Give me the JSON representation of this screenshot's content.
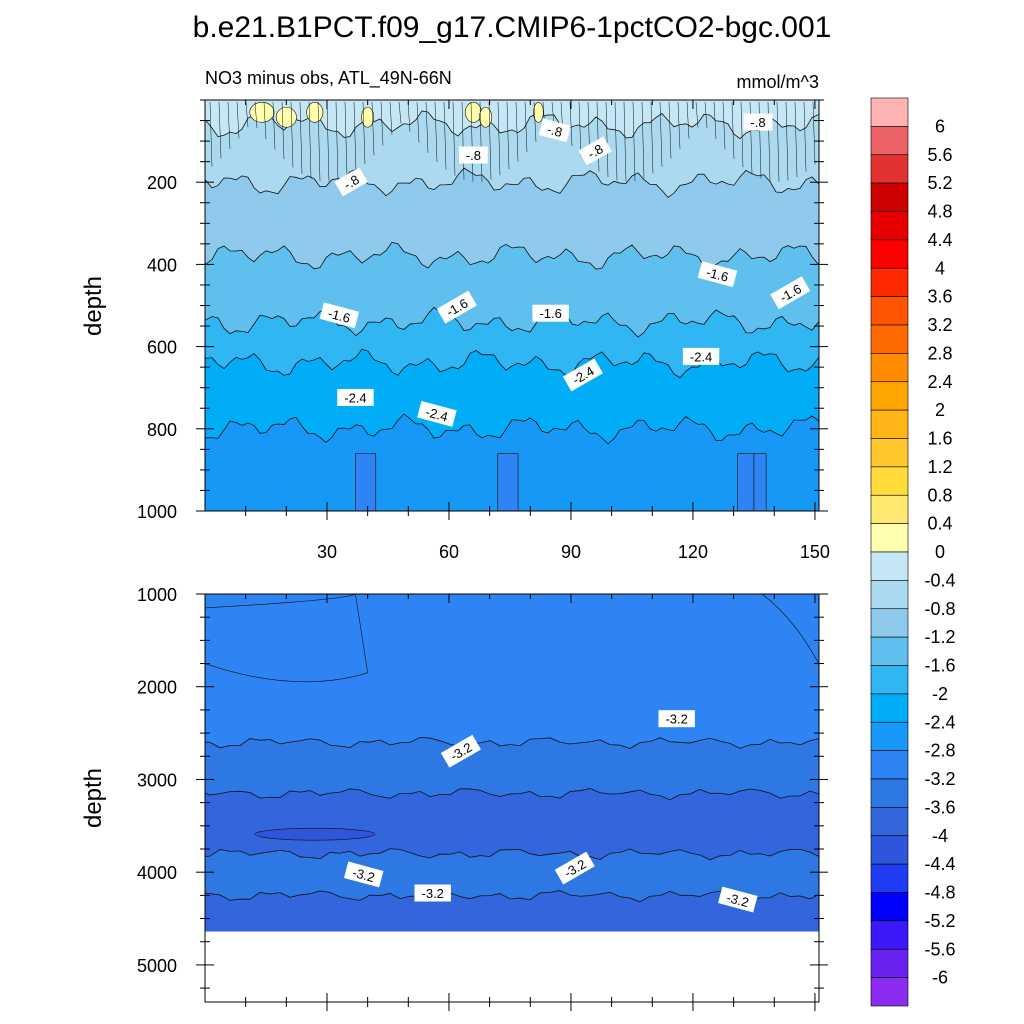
{
  "figure_title": "b.e21.B1PCT.f09_g17.CMIP6-1pctCO2-bgc.001",
  "chart_data": [
    {
      "type": "heatmap",
      "panel": "upper",
      "title": "NO3 minus obs, ATL_49N-66N",
      "units": "mmol/m^3",
      "xlabel": "",
      "ylabel": "depth",
      "xlim": [
        0,
        151
      ],
      "ylim": [
        1000,
        0
      ],
      "xticks": [
        "30",
        "60",
        "90",
        "120",
        "150"
      ],
      "yticks": [
        "200",
        "400",
        "600",
        "800",
        "1000"
      ],
      "depth_bands": [
        {
          "top": 0,
          "bottom": 60,
          "value": "-0.4 to 0.4"
        },
        {
          "top": 60,
          "bottom": 200,
          "value": -0.6
        },
        {
          "top": 200,
          "bottom": 380,
          "value": -1.0
        },
        {
          "top": 380,
          "bottom": 540,
          "value": -1.4
        },
        {
          "top": 540,
          "bottom": 640,
          "value": -1.8
        },
        {
          "top": 640,
          "bottom": 800,
          "value": -2.2
        },
        {
          "top": 800,
          "bottom": 1000,
          "value": -2.6
        }
      ],
      "contour_labels": [
        {
          "text": "-.8",
          "x": 36,
          "depth": 200
        },
        {
          "text": "-.8",
          "x": 66,
          "depth": 135
        },
        {
          "text": "-.8",
          "x": 86,
          "depth": 75
        },
        {
          "text": "-.8",
          "x": 96,
          "depth": 125
        },
        {
          "text": "-.8",
          "x": 136,
          "depth": 55
        },
        {
          "text": "-1.6",
          "x": 33,
          "depth": 525
        },
        {
          "text": "-1.6",
          "x": 62,
          "depth": 505
        },
        {
          "text": "-1.6",
          "x": 85,
          "depth": 520
        },
        {
          "text": "-1.6",
          "x": 126,
          "depth": 425
        },
        {
          "text": "-1.6",
          "x": 144,
          "depth": 470
        },
        {
          "text": "-2.4",
          "x": 37,
          "depth": 725
        },
        {
          "text": "-2.4",
          "x": 57,
          "depth": 765
        },
        {
          "text": "-2.4",
          "x": 93,
          "depth": 670
        },
        {
          "text": "-2.4",
          "x": 122,
          "depth": 625
        }
      ]
    },
    {
      "type": "heatmap",
      "panel": "lower",
      "xlabel": "",
      "ylabel": "depth",
      "xlim": [
        0,
        151
      ],
      "ylim": [
        5400,
        1000
      ],
      "yticks": [
        "1000",
        "2000",
        "3000",
        "4000",
        "5000"
      ],
      "missing_below_depth": 4640,
      "depth_bands": [
        {
          "top": 1000,
          "bottom": 2600,
          "value": -3.0
        },
        {
          "top": 2600,
          "bottom": 3150,
          "value": -3.4
        },
        {
          "top": 3150,
          "bottom": 3800,
          "value": -3.8
        },
        {
          "top": 3800,
          "bottom": 4250,
          "value": -3.4
        },
        {
          "top": 4250,
          "bottom": 4640,
          "value": -3.8
        }
      ],
      "contour_labels": [
        {
          "text": "-3.2",
          "x": 63,
          "depth": 2700
        },
        {
          "text": "-3.2",
          "x": 116,
          "depth": 2350
        },
        {
          "text": "-3.2",
          "x": 39,
          "depth": 4030
        },
        {
          "text": "-3.2",
          "x": 91,
          "depth": 3960
        },
        {
          "text": "-3.2",
          "x": 56,
          "depth": 4230
        },
        {
          "text": "-3.2",
          "x": 131,
          "depth": 4300
        }
      ]
    }
  ],
  "colorbar": {
    "labels": [
      "6",
      "5.6",
      "5.2",
      "4.8",
      "4.4",
      "4",
      "3.6",
      "3.2",
      "2.8",
      "2.4",
      "2",
      "1.6",
      "1.2",
      "0.8",
      "0.4",
      "0",
      "-0.4",
      "-0.8",
      "-1.2",
      "-1.6",
      "-2",
      "-2.4",
      "-2.8",
      "-3.2",
      "-3.6",
      "-4",
      "-4.4",
      "-4.8",
      "-5.2",
      "-5.6",
      "-6"
    ],
    "colors": [
      "#ffb3b3",
      "#ec6266",
      "#e23232",
      "#cf0000",
      "#e80000",
      "#ff0000",
      "#ff2a00",
      "#ff5500",
      "#ff6a00",
      "#ff8c00",
      "#ffa500",
      "#ffb516",
      "#ffc72c",
      "#ffdc3a",
      "#ffe96e",
      "#ffffad",
      "#c5e6f5",
      "#abd9ef",
      "#8fcaec",
      "#5fc0f0",
      "#30b6f3",
      "#00adf6",
      "#1898f6",
      "#2d84f2",
      "#2d78e3",
      "#3366dd",
      "#2f55dc",
      "#1f3cf2",
      "#0000ff",
      "#3d18f8",
      "#6a22f0",
      "#8b2cf0"
    ]
  }
}
